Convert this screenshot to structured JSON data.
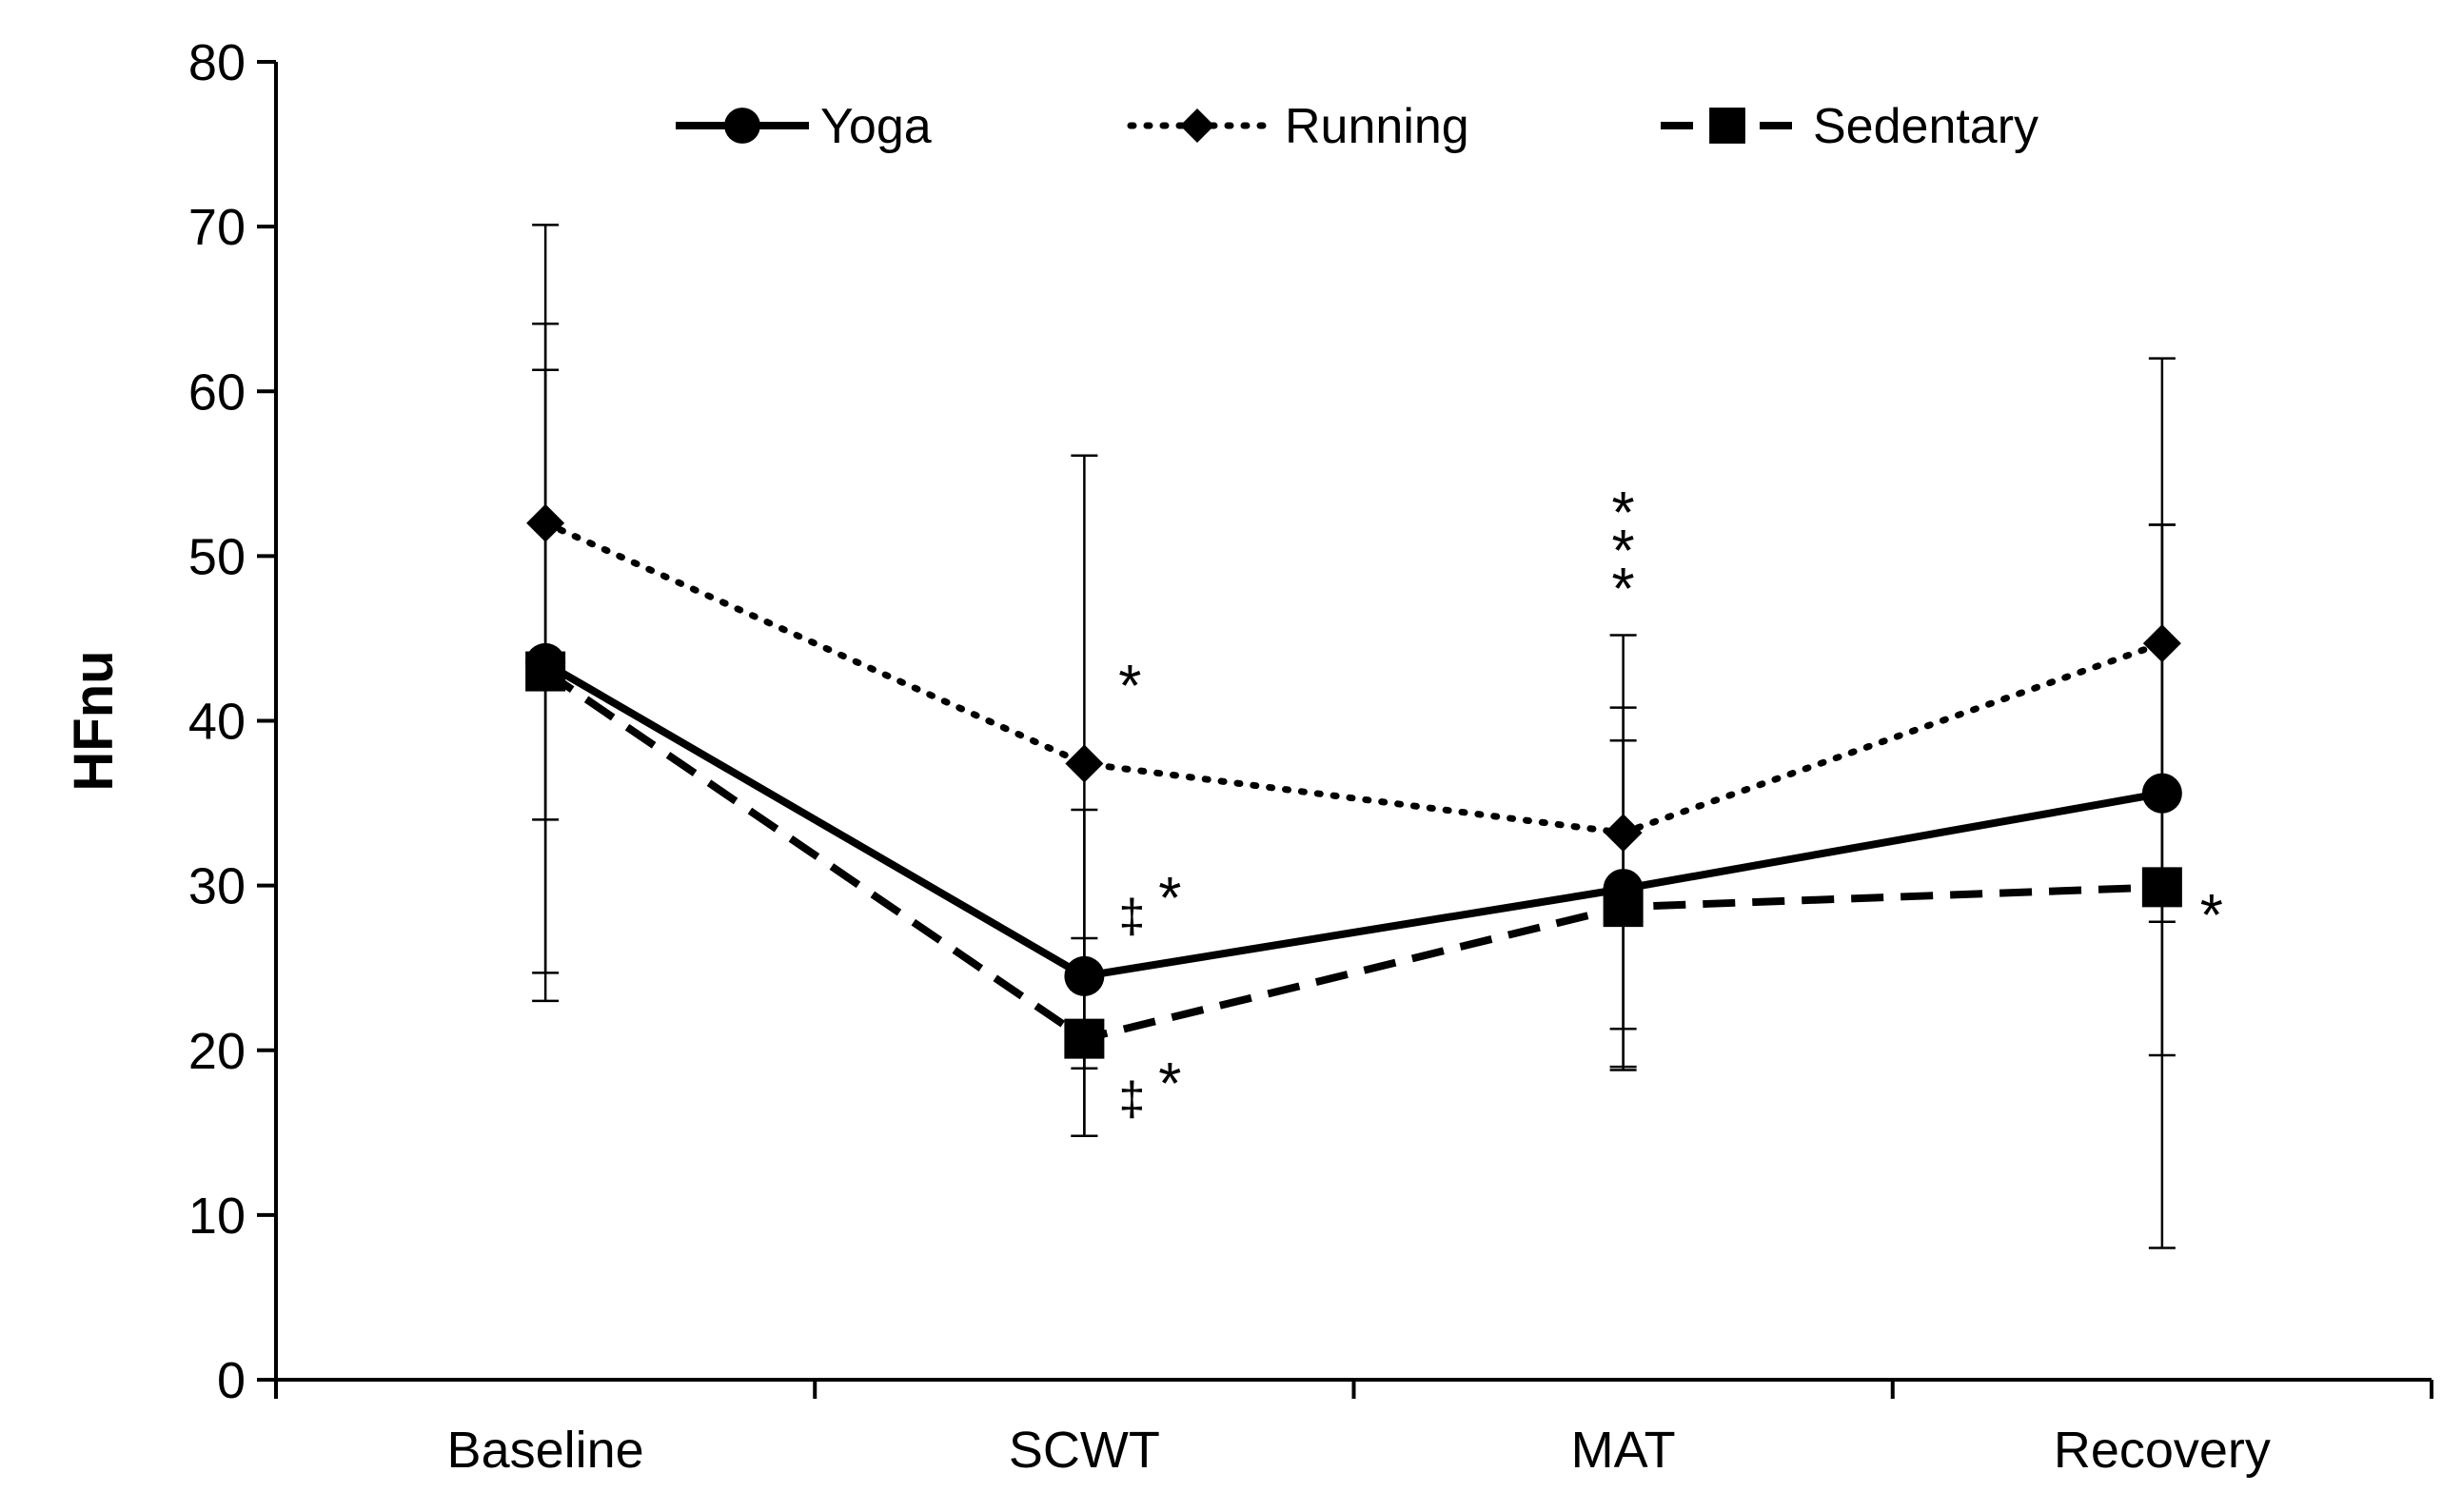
{
  "chart_data": {
    "type": "line",
    "title": "",
    "xlabel": "",
    "ylabel": "HFnu",
    "ylim": [
      0,
      80
    ],
    "yticks": [
      0,
      10,
      20,
      30,
      40,
      50,
      60,
      70,
      80
    ],
    "categories": [
      "Baseline",
      "SCWT",
      "MAT",
      "Recovery"
    ],
    "grid": false,
    "legend_position": "top",
    "series": [
      {
        "name": "Yoga",
        "marker": "circle",
        "line_style": "solid",
        "values": [
          43.5,
          24.5,
          29.8,
          35.6
        ],
        "error_upper": [
          64.1,
          34.6,
          40.8,
          51.9
        ],
        "error_lower": [
          23.0,
          14.8,
          18.8,
          19.7
        ]
      },
      {
        "name": "Running",
        "marker": "diamond",
        "line_style": "dotted",
        "values": [
          52.0,
          37.4,
          33.2,
          44.7
        ],
        "error_upper": [
          70.1,
          56.1,
          45.2,
          62.0
        ],
        "error_lower": [
          34.0,
          18.9,
          21.3,
          8.0
        ]
      },
      {
        "name": "Sedentary",
        "marker": "square",
        "line_style": "dashed",
        "values": [
          43.0,
          20.7,
          28.7,
          29.9
        ],
        "error_upper": [
          61.3,
          26.8,
          38.8,
          51.9
        ],
        "error_lower": [
          24.7,
          14.8,
          19.0,
          27.8
        ]
      }
    ],
    "annotations": [
      {
        "text": "*",
        "category": "SCWT",
        "series": "Running"
      },
      {
        "text": "‡",
        "category": "SCWT",
        "series": "Yoga"
      },
      {
        "text": "*",
        "category": "SCWT",
        "series": "Yoga"
      },
      {
        "text": "‡",
        "category": "SCWT",
        "series": "Sedentary"
      },
      {
        "text": "*",
        "category": "SCWT",
        "series": "Sedentary"
      },
      {
        "text": "*",
        "category": "MAT",
        "series": "Running"
      },
      {
        "text": "*",
        "category": "MAT",
        "series": "Yoga"
      },
      {
        "text": "*",
        "category": "MAT",
        "series": "Sedentary"
      },
      {
        "text": "*",
        "category": "Recovery",
        "series": "Sedentary"
      }
    ]
  }
}
